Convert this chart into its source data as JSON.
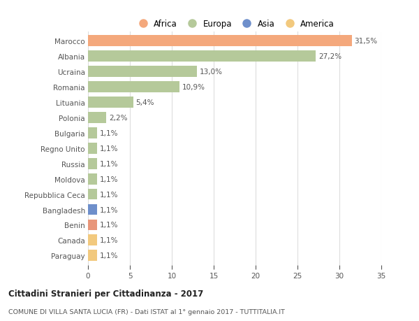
{
  "countries": [
    "Marocco",
    "Albania",
    "Ucraina",
    "Romania",
    "Lituania",
    "Polonia",
    "Bulgaria",
    "Regno Unito",
    "Russia",
    "Moldova",
    "Repubblica Ceca",
    "Bangladesh",
    "Benin",
    "Canada",
    "Paraguay"
  ],
  "values": [
    31.5,
    27.2,
    13.0,
    10.9,
    5.4,
    2.2,
    1.1,
    1.1,
    1.1,
    1.1,
    1.1,
    1.1,
    1.1,
    1.1,
    1.1
  ],
  "labels": [
    "31,5%",
    "27,2%",
    "13,0%",
    "10,9%",
    "5,4%",
    "2,2%",
    "1,1%",
    "1,1%",
    "1,1%",
    "1,1%",
    "1,1%",
    "1,1%",
    "1,1%",
    "1,1%",
    "1,1%"
  ],
  "colors": [
    "#F4A87C",
    "#B5C99A",
    "#B5C99A",
    "#B5C99A",
    "#B5C99A",
    "#B5C99A",
    "#B5C99A",
    "#B5C99A",
    "#B5C99A",
    "#B5C99A",
    "#B5C99A",
    "#6E8FCB",
    "#E8967A",
    "#F2C97E",
    "#F2C97E"
  ],
  "legend_labels": [
    "Africa",
    "Europa",
    "Asia",
    "America"
  ],
  "legend_colors": [
    "#F4A87C",
    "#B5C99A",
    "#6E8FCB",
    "#F2C97E"
  ],
  "xlim": [
    0,
    35
  ],
  "xticks": [
    0,
    5,
    10,
    15,
    20,
    25,
    30,
    35
  ],
  "title": "Cittadini Stranieri per Cittadinanza - 2017",
  "subtitle": "COMUNE DI VILLA SANTA LUCIA (FR) - Dati ISTAT al 1° gennaio 2017 - TUTTITALIA.IT",
  "bg_color": "#FFFFFF",
  "grid_color": "#DDDDDD",
  "bar_height": 0.72,
  "text_color": "#555555",
  "title_color": "#222222",
  "label_fontsize": 7.5,
  "tick_fontsize": 7.5
}
